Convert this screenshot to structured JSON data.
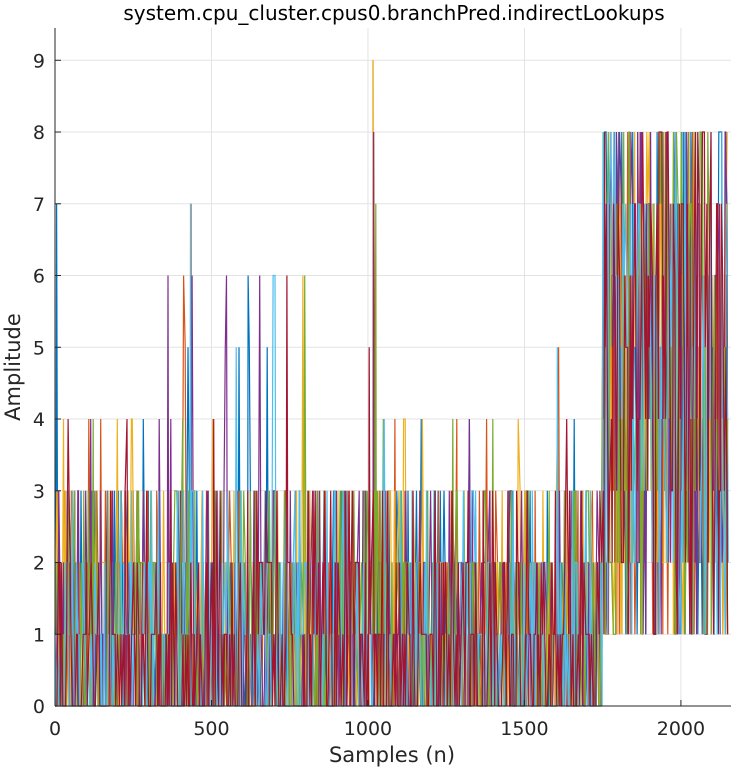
{
  "chart_data": {
    "type": "line",
    "title": "system.cpu_cluster.cpus0.branchPred.indirectLookups",
    "xlabel": "Samples (n)",
    "ylabel": "Amplitude",
    "xlim": [
      0,
      2160
    ],
    "ylim": [
      0,
      9.45
    ],
    "xticks": [
      0,
      500,
      1000,
      1500,
      2000
    ],
    "yticks": [
      0,
      1,
      2,
      3,
      4,
      5,
      6,
      7,
      8,
      9
    ],
    "grid": true,
    "legend": "none",
    "series_colors": [
      "#0072BD",
      "#D95319",
      "#EDB120",
      "#7E2F8E",
      "#77AC30",
      "#4DBEEE",
      "#A2142F"
    ],
    "num_series": 7,
    "region_max_levels": [
      {
        "x": [
          0,
          10
        ],
        "max": 7
      },
      {
        "x": [
          10,
          350
        ],
        "max": 4
      },
      {
        "x": [
          360,
          480
        ],
        "max": 6
      },
      {
        "x": [
          430,
          440
        ],
        "max": 7
      },
      {
        "x": [
          480,
          800
        ],
        "max": 6
      },
      {
        "x": [
          800,
          1000
        ],
        "max": 3
      },
      {
        "x": [
          1000,
          1010
        ],
        "max": 5
      },
      {
        "x": [
          1010,
          1020
        ],
        "max": 9
      },
      {
        "x": [
          1020,
          1240
        ],
        "max": 4
      },
      {
        "x": [
          1240,
          1750
        ],
        "max": 4
      },
      {
        "x": [
          1600,
          1610
        ],
        "max": 5
      },
      {
        "x": [
          1750,
          2155
        ],
        "max": 8
      }
    ],
    "peaks": [
      {
        "x": 5,
        "y": 7
      },
      {
        "x": 435,
        "y": 7
      },
      {
        "x": 1016,
        "y": 9
      },
      {
        "x": 1018,
        "y": 8
      },
      {
        "x": 1025,
        "y": 7
      },
      {
        "x": 1605,
        "y": 5
      }
    ]
  }
}
